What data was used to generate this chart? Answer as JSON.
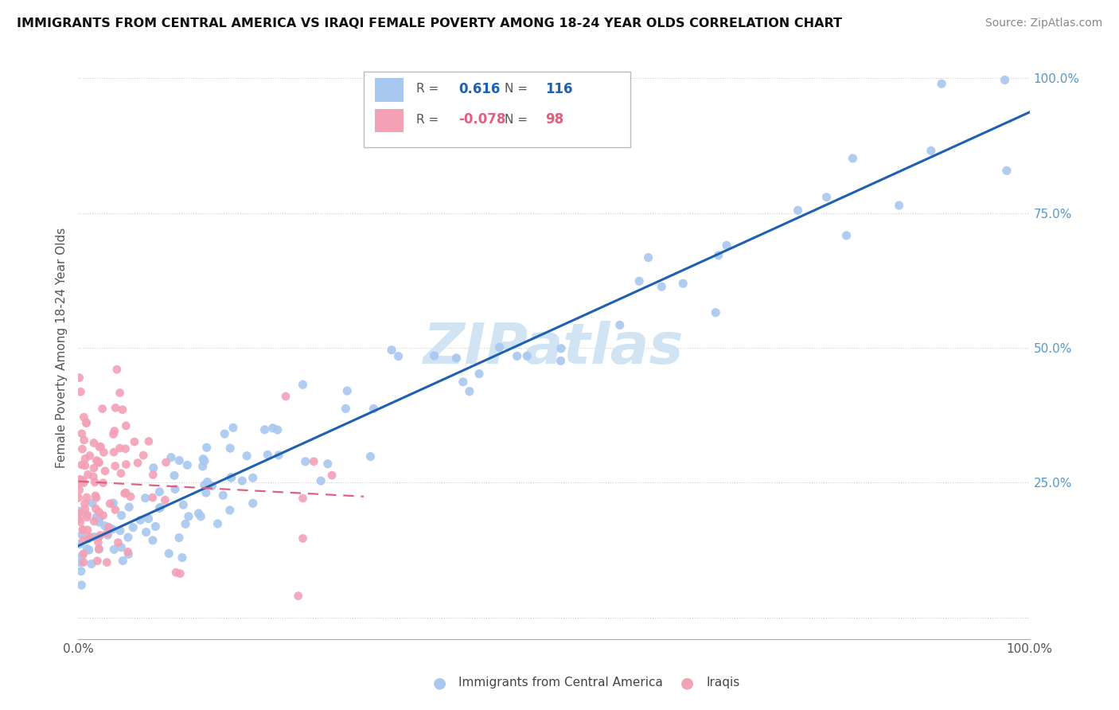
{
  "title": "IMMIGRANTS FROM CENTRAL AMERICA VS IRAQI FEMALE POVERTY AMONG 18-24 YEAR OLDS CORRELATION CHART",
  "source": "Source: ZipAtlas.com",
  "ylabel": "Female Poverty Among 18-24 Year Olds",
  "r_blue": 0.616,
  "n_blue": 116,
  "r_pink": -0.078,
  "n_pink": 98,
  "blue_color": "#a8c8f0",
  "pink_color": "#f4a0b5",
  "blue_line_color": "#2060b0",
  "pink_line_color": "#e06080",
  "watermark_color": "#d0e4f4",
  "background_color": "#ffffff",
  "legend_box_blue": "#a8c8f0",
  "legend_box_pink": "#f4a0b5",
  "grid_color": "#cccccc",
  "ytick_color": "#5599cc",
  "xtick_color": "#555555",
  "ylabel_color": "#555555",
  "legend_text_color": "#555555",
  "bottom_legend_blue_label": "Immigrants from Central America",
  "bottom_legend_pink_label": "Iraqis"
}
